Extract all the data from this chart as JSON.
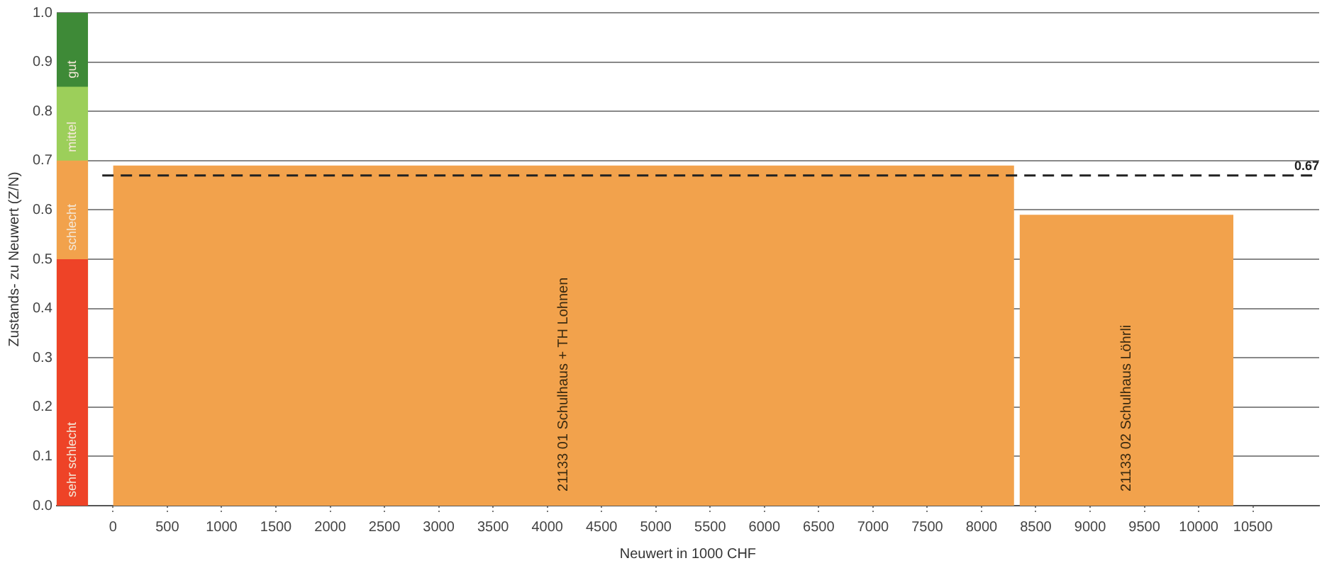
{
  "chart_data": {
    "type": "area",
    "xlabel": "Neuwert in 1000 CHF",
    "ylabel": "Zustands- zu Neuwert (Z/N)",
    "series": [
      {
        "name": "gut",
        "color": "#3e8a37",
        "x": [
          -520,
          -230
        ],
        "values": [
          1,
          1
        ]
      },
      {
        "name": "mittel",
        "color": "#9ccf5a",
        "x": [
          -520,
          -230
        ],
        "values": [
          0.85,
          0.85
        ]
      },
      {
        "name": "schlecht",
        "color": "#f2a24c",
        "x": [
          -520,
          -230
        ],
        "values": [
          0.7,
          0.7
        ]
      },
      {
        "name": "sehr schlecht",
        "color": "#ee4327",
        "x": [
          -520,
          -230
        ],
        "values": [
          0.5,
          0.5
        ]
      },
      {
        "name": "21133 01 Schulhaus + TH Lohnen",
        "color": "#f2a24c",
        "x": [
          0,
          8300
        ],
        "values": [
          0.69,
          0.69
        ]
      },
      {
        "name": "21133 02 Schulhaus Löhrli",
        "color": "#f2a24c",
        "x": [
          8350,
          10320
        ],
        "values": [
          0.59,
          0.59
        ]
      }
    ],
    "xlim": [
      -520,
      11110
    ],
    "xticks": [
      0,
      500,
      1000,
      1500,
      2000,
      2500,
      3000,
      3500,
      4000,
      4500,
      5000,
      5500,
      6000,
      6500,
      7000,
      7500,
      8000,
      8500,
      9000,
      9500,
      10000,
      10500
    ],
    "ylim": [
      0,
      1
    ],
    "yticks": [
      {
        "value": 0,
        "label": "0.0"
      },
      0.1,
      0.2,
      0.3,
      0.4,
      0.5,
      0.6,
      0.7,
      0.8,
      0.9,
      {
        "value": 1,
        "label": "1.0"
      }
    ],
    "grid": "y",
    "legend": false,
    "ref_lines": [
      {
        "axis": "y",
        "value": 0.67,
        "label": "0.67",
        "color": "#222222",
        "line_style": "dashed"
      }
    ]
  }
}
